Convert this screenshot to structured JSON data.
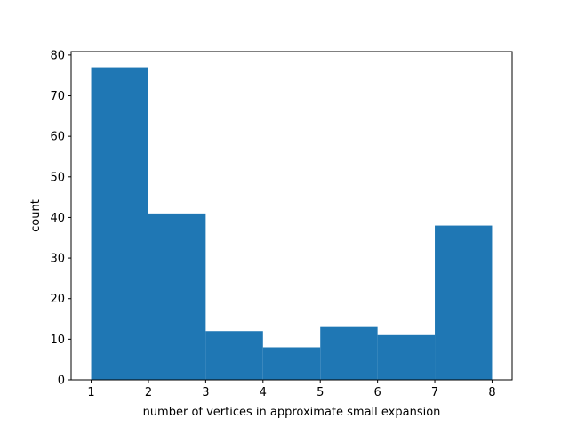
{
  "chart_data": {
    "type": "bar",
    "bins": [
      [
        1,
        2
      ],
      [
        2,
        3
      ],
      [
        3,
        4
      ],
      [
        4,
        5
      ],
      [
        5,
        6
      ],
      [
        6,
        7
      ],
      [
        7,
        8
      ]
    ],
    "values": [
      77,
      41,
      12,
      8,
      13,
      11,
      38
    ],
    "xlabel": "number of vertices in approximate small expansion",
    "ylabel": "count",
    "xlim": [
      0.65,
      8.35
    ],
    "ylim": [
      0,
      80.85
    ],
    "xticks": [
      "1",
      "2",
      "3",
      "4",
      "5",
      "6",
      "7",
      "8"
    ],
    "yticks": [
      "0",
      "10",
      "20",
      "30",
      "40",
      "50",
      "60",
      "70",
      "80"
    ],
    "grid": false,
    "bar_color": "#1f77b4"
  }
}
